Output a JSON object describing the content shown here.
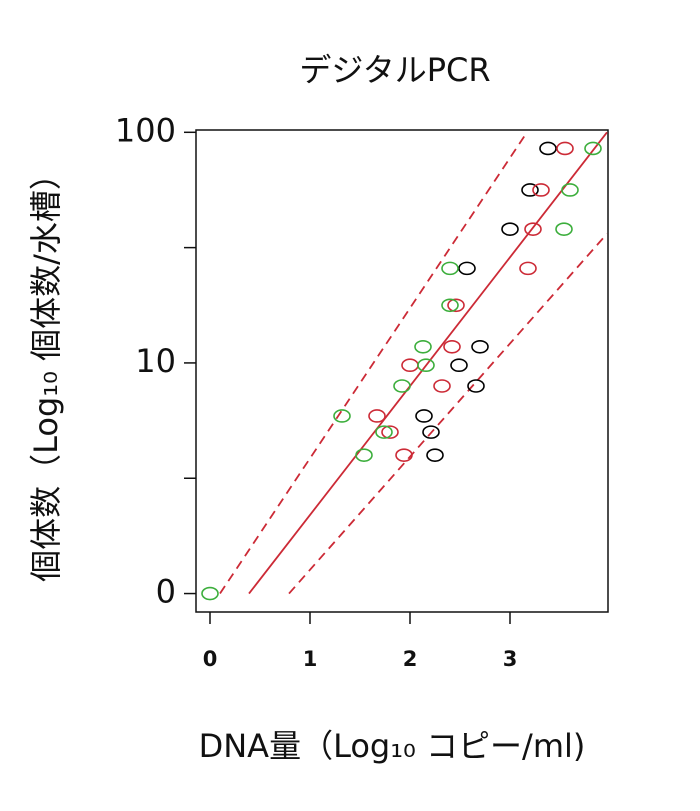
{
  "chart_data": {
    "type": "scatter",
    "title": "デジタルPCR",
    "x_label": "DNA量（Log₁₀ コピー/ml)",
    "y_label": "個体数（Log₁₀ 個体数/水槽）",
    "xlim": [
      -0.14,
      3.98
    ],
    "ylim": [
      -0.08,
      2.01
    ],
    "xticks": [
      0,
      1,
      2,
      3
    ],
    "yticks": [
      {
        "value": 0,
        "label": "0"
      },
      {
        "value": 1,
        "label": "10"
      },
      {
        "value": 2,
        "label": "100"
      }
    ],
    "minor_yticks": [
      0.5,
      1.5
    ],
    "series": [
      {
        "color": "#000000",
        "x": [
          3.38,
          3.2,
          3.0,
          2.57,
          2.7,
          2.49,
          2.66,
          2.14,
          2.21,
          2.25
        ],
        "values": [
          1.93,
          1.75,
          1.58,
          1.41,
          1.07,
          0.99,
          0.9,
          0.77,
          0.7,
          0.6
        ]
      },
      {
        "color": "#cc2a36",
        "x": [
          3.55,
          3.31,
          3.23,
          3.18,
          2.46,
          2.42,
          2.0,
          2.32,
          1.67,
          1.8,
          1.94
        ],
        "values": [
          1.93,
          1.75,
          1.58,
          1.41,
          1.25,
          1.07,
          0.99,
          0.9,
          0.77,
          0.7,
          0.6
        ]
      },
      {
        "color": "#3cae3c",
        "x": [
          3.83,
          3.6,
          3.54,
          2.4,
          2.4,
          2.13,
          2.16,
          1.92,
          1.32,
          1.74,
          1.54,
          0
        ],
        "values": [
          1.93,
          1.75,
          1.58,
          1.41,
          1.25,
          1.07,
          0.99,
          0.9,
          0.77,
          0.7,
          0.6,
          0
        ]
      }
    ],
    "lines": [
      {
        "color": "#cc2a36",
        "style": "solid",
        "x": [
          0.39,
          3.97
        ],
        "y": [
          0,
          2
        ]
      },
      {
        "color": "#cc2a36",
        "style": "dashed",
        "x": [
          0.1,
          3.17
        ],
        "y": [
          0,
          2
        ]
      },
      {
        "color": "#cc2a36",
        "style": "dashed",
        "x": [
          0.79,
          3.97
        ],
        "y": [
          0,
          1.56
        ]
      }
    ]
  }
}
